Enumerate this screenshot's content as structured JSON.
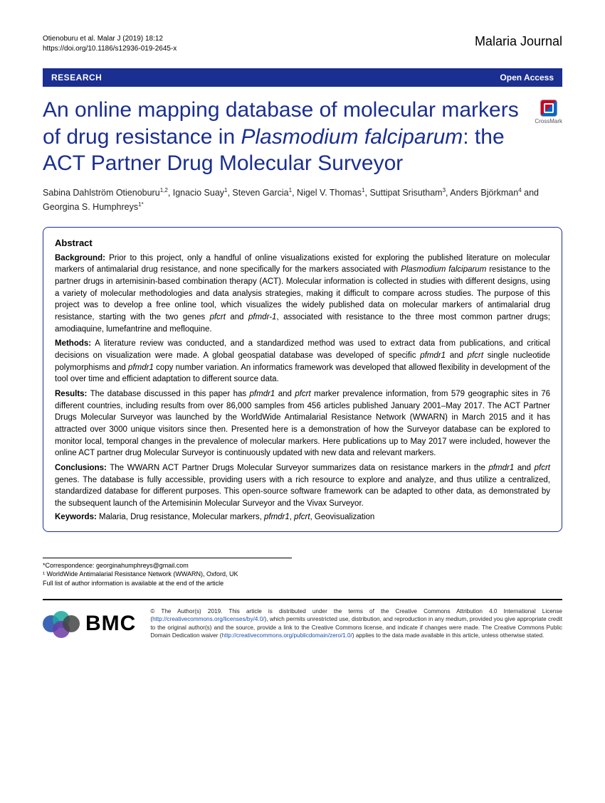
{
  "header": {
    "citation_line1": "Otienoburu et al. Malar J        (2019) 18:12",
    "citation_line2": "https://doi.org/10.1186/s12936-019-2645-x",
    "journal": "Malaria Journal"
  },
  "banner": {
    "category": "RESEARCH",
    "access": "Open Access"
  },
  "crossmark_label": "CrossMark",
  "title_html": "An online mapping database of molecular markers of drug resistance in <em>Plasmodium falciparum</em>: the ACT Partner Drug Molecular Surveyor",
  "authors_html": "Sabina Dahlström Otienoburu<sup>1,2</sup>, Ignacio Suay<sup>1</sup>, Steven Garcia<sup>1</sup>, Nigel V. Thomas<sup>1</sup>, Suttipat Srisutham<sup>3</sup>, Anders Björkman<sup>4</sup> and Georgina S. Humphreys<sup>1*</sup>",
  "abstract": {
    "heading": "Abstract",
    "background_html": "<strong>Background:</strong> Prior to this project, only a handful of online visualizations existed for exploring the published literature on molecular markers of antimalarial drug resistance, and none specifically for the markers associated with <em>Plasmodium falciparum</em> resistance to the partner drugs in artemisinin-based combination therapy (ACT). Molecular information is collected in studies with different designs, using a variety of molecular methodologies and data analysis strategies, making it difficult to compare across studies. The purpose of this project was to develop a free online tool, which visualizes the widely published data on molecular markers of antimalarial drug resistance, starting with the two genes <em>pfcrt</em> and <em>pfmdr-1</em>, associated with resistance to the three most common partner drugs; amodiaquine, lumefantrine and mefloquine.",
    "methods_html": "<strong>Methods:</strong> A literature review was conducted, and a standardized method was used to extract data from publications, and critical decisions on visualization were made. A global geospatial database was developed of specific <em>pfmdr1</em> and <em>pfcrt</em> single nucleotide polymorphisms and <em>pfmdr1</em> copy number variation. An informatics framework was developed that allowed flexibility in development of the tool over time and efficient adaptation to different source data.",
    "results_html": "<strong>Results:</strong> The database discussed in this paper has <em>pfmdr1</em> and <em>pfcrt</em> marker prevalence information, from 579 geographic sites in 76 different countries, including results from over 86,000 samples from 456 articles published January 2001–May 2017. The ACT Partner Drugs Molecular Surveyor was launched by the WorldWide Antimalarial Resistance Network (WWARN) in March 2015 and it has attracted over 3000 unique visitors since then. Presented here is a demonstration of how the Surveyor database can be explored to monitor local, temporal changes in the prevalence of molecular markers. Here publications up to May 2017 were included, however the online ACT partner drug Molecular Surveyor is continuously updated with new data and relevant markers.",
    "conclusions_html": "<strong>Conclusions:</strong> The WWARN ACT Partner Drugs Molecular Surveyor summarizes data on resistance markers in the <em>pfmdr1</em> and <em>pfcrt</em> genes. The database is fully accessible, providing users with a rich resource to explore and analyze, and thus utilize a centralized, standardized database for different purposes. This open-source software framework can be adapted to other data, as demonstrated by the subsequent launch of the Artemisinin Molecular Surveyor and the Vivax Surveyor.",
    "keywords_html": "<strong>Keywords:</strong> Malaria, Drug resistance, Molecular markers, <em>pfmdr1</em>, <em>pfcrt</em>, Geovisualization"
  },
  "correspondence": {
    "line1": "*Correspondence: georginahumphreys@gmail.com",
    "line2": "¹ WorldWide Antimalarial Resistance Network (WWARN), Oxford, UK",
    "line3": "Full list of author information is available at the end of the article"
  },
  "footer": {
    "bmc": "BMC",
    "license_html": "© The Author(s) 2019. This article is distributed under the terms of the Creative Commons Attribution 4.0 International License (<a>http://creativecommons.org/licenses/by/4.0/</a>), which permits unrestricted use, distribution, and reproduction in any medium, provided you give appropriate credit to the original author(s) and the source, provide a link to the Creative Commons license, and indicate if changes were made. The Creative Commons Public Domain Dedication waiver (<a>http://creativecommons.org/publicdomain/zero/1.0/</a>) applies to the data made available in this article, unless otherwise stated."
  }
}
